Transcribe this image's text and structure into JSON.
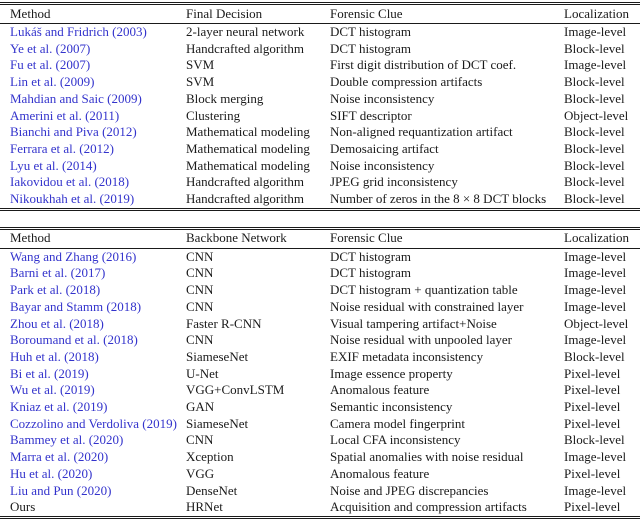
{
  "citation_color": "#3333CC",
  "text_color": "#1a1a1a",
  "table1": {
    "headers": [
      "Method",
      "Final Decision",
      "Forensic Clue",
      "Localization"
    ],
    "rows": [
      {
        "method": "Lukáš and Fridrich (2003)",
        "cite": true,
        "col2": "2-layer neural network",
        "clue": "DCT histogram",
        "loc": "Image-level"
      },
      {
        "method": "Ye et al. (2007)",
        "cite": true,
        "col2": "Handcrafted algorithm",
        "clue": "DCT histogram",
        "loc": "Block-level"
      },
      {
        "method": "Fu et al. (2007)",
        "cite": true,
        "col2": "SVM",
        "clue": "First digit distribution of DCT coef.",
        "loc": "Image-level"
      },
      {
        "method": "Lin et al. (2009)",
        "cite": true,
        "col2": "SVM",
        "clue": "Double compression artifacts",
        "loc": "Block-level"
      },
      {
        "method": "Mahdian and Saic (2009)",
        "cite": true,
        "col2": "Block merging",
        "clue": "Noise inconsistency",
        "loc": "Block-level"
      },
      {
        "method": "Amerini et al. (2011)",
        "cite": true,
        "col2": "Clustering",
        "clue": "SIFT descriptor",
        "loc": "Object-level"
      },
      {
        "method": "Bianchi and Piva (2012)",
        "cite": true,
        "col2": "Mathematical modeling",
        "clue": "Non-aligned requantization artifact",
        "loc": "Block-level"
      },
      {
        "method": "Ferrara et al. (2012)",
        "cite": true,
        "col2": "Mathematical modeling",
        "clue": "Demosaicing artifact",
        "loc": "Block-level"
      },
      {
        "method": "Lyu et al. (2014)",
        "cite": true,
        "col2": "Mathematical modeling",
        "clue": "Noise inconsistency",
        "loc": "Block-level"
      },
      {
        "method": "Iakovidou et al. (2018)",
        "cite": true,
        "col2": "Handcrafted algorithm",
        "clue": "JPEG grid inconsistency",
        "loc": "Block-level"
      },
      {
        "method": "Nikoukhah et al. (2019)",
        "cite": true,
        "col2": "Handcrafted algorithm",
        "clue": "Number of zeros in the 8 × 8 DCT blocks",
        "loc": "Block-level"
      }
    ]
  },
  "table2": {
    "headers": [
      "Method",
      "Backbone Network",
      "Forensic Clue",
      "Localization"
    ],
    "rows": [
      {
        "method": "Wang and Zhang (2016)",
        "cite": true,
        "col2": "CNN",
        "clue": "DCT histogram",
        "loc": "Image-level"
      },
      {
        "method": "Barni et al. (2017)",
        "cite": true,
        "col2": "CNN",
        "clue": "DCT histogram",
        "loc": "Image-level"
      },
      {
        "method": "Park et al. (2018)",
        "cite": true,
        "col2": "CNN",
        "clue": "DCT histogram + quantization table",
        "loc": "Image-level"
      },
      {
        "method": "Bayar and Stamm (2018)",
        "cite": true,
        "col2": "CNN",
        "clue": "Noise residual with constrained layer",
        "loc": "Image-level"
      },
      {
        "method": "Zhou et al. (2018)",
        "cite": true,
        "col2": "Faster R-CNN",
        "clue": "Visual tampering artifact+Noise",
        "loc": "Object-level"
      },
      {
        "method": "Boroumand et al. (2018)",
        "cite": true,
        "col2": "CNN",
        "clue": "Noise residual with unpooled layer",
        "loc": "Image-level"
      },
      {
        "method": "Huh et al. (2018)",
        "cite": true,
        "col2": "SiameseNet",
        "clue": "EXIF metadata inconsistency",
        "loc": "Block-level"
      },
      {
        "method": "Bi et al. (2019)",
        "cite": true,
        "col2": "U-Net",
        "clue": "Image essence property",
        "loc": "Pixel-level"
      },
      {
        "method": "Wu et al. (2019)",
        "cite": true,
        "col2": "VGG+ConvLSTM",
        "clue": "Anomalous feature",
        "loc": "Pixel-level"
      },
      {
        "method": "Kniaz et al. (2019)",
        "cite": true,
        "col2": "GAN",
        "clue": "Semantic inconsistency",
        "loc": "Pixel-level"
      },
      {
        "method": "Cozzolino and Verdoliva (2019)",
        "cite": true,
        "col2": "SiameseNet",
        "clue": "Camera model fingerprint",
        "loc": "Pixel-level"
      },
      {
        "method": "Bammey et al. (2020)",
        "cite": true,
        "col2": "CNN",
        "clue": "Local CFA inconsistency",
        "loc": "Block-level"
      },
      {
        "method": "Marra et al. (2020)",
        "cite": true,
        "col2": "Xception",
        "clue": "Spatial anomalies with noise residual",
        "loc": "Image-level"
      },
      {
        "method": "Hu et al. (2020)",
        "cite": true,
        "col2": "VGG",
        "clue": "Anomalous feature",
        "loc": "Pixel-level"
      },
      {
        "method": "Liu and Pun (2020)",
        "cite": true,
        "col2": "DenseNet",
        "clue": "Noise and JPEG discrepancies",
        "loc": "Image-level"
      },
      {
        "method": "Ours",
        "cite": false,
        "col2": "HRNet",
        "clue": "Acquisition and compression artifacts",
        "loc": "Pixel-level"
      }
    ]
  }
}
